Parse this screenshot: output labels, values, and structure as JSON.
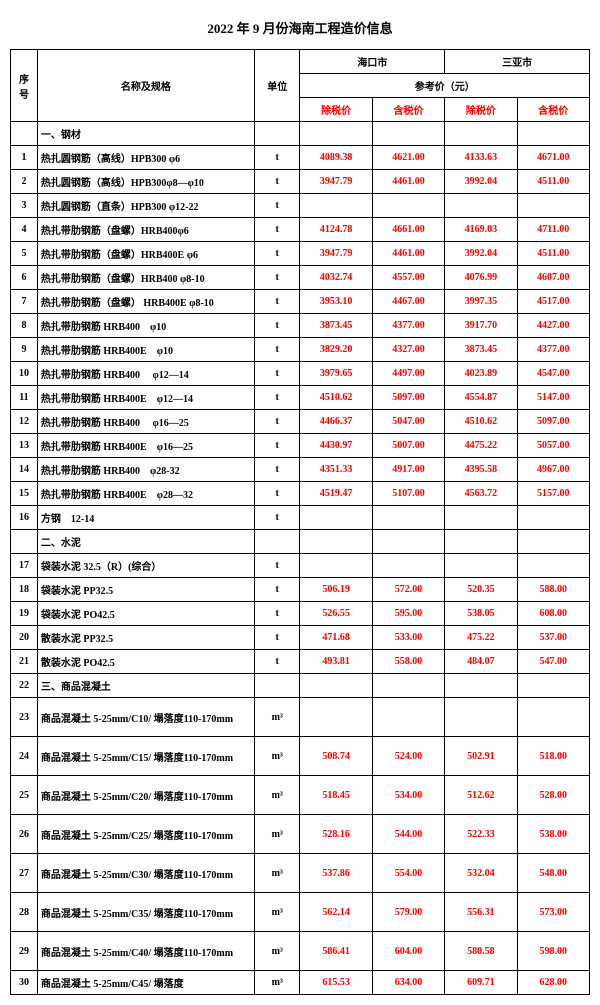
{
  "title": "2022 年 9 月份海南工程造价信息",
  "colors": {
    "price": "#ff0000",
    "text": "#000000",
    "border": "#000000",
    "bg": "#ffffff"
  },
  "header": {
    "idx": "序号",
    "name": "名称及规格",
    "unit": "单位",
    "city1": "海口市",
    "city2": "三亚市",
    "refprice": "参考价（元）",
    "excl": "除税价",
    "incl": "含税价"
  },
  "rows": [
    {
      "type": "section",
      "label": "一、钢材"
    },
    {
      "idx": "1",
      "name": "热扎圆钢筋（高线）HPB300 φ6",
      "unit": "t",
      "p": [
        "4089.38",
        "4621.00",
        "4133.63",
        "4671.00"
      ]
    },
    {
      "idx": "2",
      "name": "热扎圆钢筋（高线）HPB300φ8—φ10",
      "unit": "t",
      "p": [
        "3947.79",
        "4461.00",
        "3992.04",
        "4511.00"
      ]
    },
    {
      "idx": "3",
      "name": "热扎圆钢筋（直条）HPB300 φ12-22",
      "unit": "t",
      "p": [
        "",
        "",
        "",
        ""
      ]
    },
    {
      "idx": "4",
      "name": "热扎带肋钢筋（盘螺）HRB400φ6",
      "unit": "t",
      "p": [
        "4124.78",
        "4661.00",
        "4169.03",
        "4711.00"
      ]
    },
    {
      "idx": "5",
      "name": "热扎带肋钢筋（盘螺）HRB400E φ6",
      "unit": "t",
      "p": [
        "3947.79",
        "4461.00",
        "3992.04",
        "4511.00"
      ]
    },
    {
      "idx": "6",
      "name": "热扎带肋钢筋（盘螺）HRB400 φ8-10",
      "unit": "t",
      "p": [
        "4032.74",
        "4557.00",
        "4076.99",
        "4607.00"
      ]
    },
    {
      "idx": "7",
      "name": "热扎带肋钢筋（盘螺） HRB400E φ8-10",
      "unit": "t",
      "p": [
        "3953.10",
        "4467.00",
        "3997.35",
        "4517.00"
      ]
    },
    {
      "idx": "8",
      "name": "热扎带肋钢筋 HRB400　φ10",
      "unit": "t",
      "p": [
        "3873.45",
        "4377.00",
        "3917.70",
        "4427.00"
      ]
    },
    {
      "idx": "9",
      "name": "热扎带肋钢筋 HRB400E　φ10",
      "unit": "t",
      "p": [
        "3829.20",
        "4327.00",
        "3873.45",
        "4377.00"
      ]
    },
    {
      "idx": "10",
      "name": "热扎带肋钢筋 HRB400　 φ12—14",
      "unit": "t",
      "p": [
        "3979.65",
        "4497.00",
        "4023.89",
        "4547.00"
      ]
    },
    {
      "idx": "11",
      "name": "热扎带肋钢筋 HRB400E　φ12—14",
      "unit": "t",
      "p": [
        "4510.62",
        "5097.00",
        "4554.87",
        "5147.00"
      ]
    },
    {
      "idx": "12",
      "name": "热扎带肋钢筋 HRB400　 φ16—25",
      "unit": "t",
      "p": [
        "4466.37",
        "5047.00",
        "4510.62",
        "5097.00"
      ]
    },
    {
      "idx": "13",
      "name": "热扎带肋钢筋 HRB400E　φ16—25",
      "unit": "t",
      "p": [
        "4430.97",
        "5007.00",
        "4475.22",
        "5057.00"
      ]
    },
    {
      "idx": "14",
      "name": "热扎带肋钢筋 HRB400　φ28-32",
      "unit": "t",
      "p": [
        "4351.33",
        "4917.00",
        "4395.58",
        "4967.00"
      ]
    },
    {
      "idx": "15",
      "name": "热扎带肋钢筋 HRB400E　φ28—32",
      "unit": "t",
      "p": [
        "4519.47",
        "5107.00",
        "4563.72",
        "5157.00"
      ]
    },
    {
      "idx": "16",
      "name": "方钢　12-14",
      "unit": "t",
      "p": [
        "",
        "",
        "",
        ""
      ]
    },
    {
      "type": "section",
      "label": "二、水泥"
    },
    {
      "idx": "17",
      "name": "袋装水泥 32.5（R）(综合）",
      "unit": "t",
      "p": [
        "",
        "",
        "",
        ""
      ]
    },
    {
      "idx": "18",
      "name": "袋装水泥 PP32.5",
      "unit": "t",
      "p": [
        "506.19",
        "572.00",
        "520.35",
        "588.00"
      ]
    },
    {
      "idx": "19",
      "name": "袋装水泥 PO42.5",
      "unit": "t",
      "p": [
        "526.55",
        "595.00",
        "538.05",
        "608.00"
      ]
    },
    {
      "idx": "20",
      "name": "散装水泥 PP32.5",
      "unit": "t",
      "p": [
        "471.68",
        "533.00",
        "475.22",
        "537.00"
      ]
    },
    {
      "idx": "21",
      "name": "散装水泥 PO42.5",
      "unit": "t",
      "p": [
        "493.81",
        "558.00",
        "484.07",
        "547.00"
      ]
    },
    {
      "idx": "22",
      "type": "section-numbered",
      "label": "三、商品混凝土"
    },
    {
      "idx": "23",
      "tall": true,
      "name": "商品混凝土 5-25mm/C10/ 塌落度110-170mm",
      "unit": "m³",
      "p": [
        "",
        "",
        "",
        ""
      ]
    },
    {
      "idx": "24",
      "tall": true,
      "name": "商品混凝土 5-25mm/C15/ 塌落度110-170mm",
      "unit": "m³",
      "p": [
        "508.74",
        "524.00",
        "502.91",
        "518.00"
      ]
    },
    {
      "idx": "25",
      "tall": true,
      "name": "商品混凝土 5-25mm/C20/ 塌落度110-170mm",
      "unit": "m³",
      "p": [
        "518.45",
        "534.00",
        "512.62",
        "528.00"
      ]
    },
    {
      "idx": "26",
      "tall": true,
      "name": "商品混凝土 5-25mm/C25/ 塌落度110-170mm",
      "unit": "m³",
      "p": [
        "528.16",
        "544.00",
        "522.33",
        "538.00"
      ]
    },
    {
      "idx": "27",
      "tall": true,
      "name": "商品混凝土 5-25mm/C30/ 塌落度110-170mm",
      "unit": "m³",
      "p": [
        "537.86",
        "554.00",
        "532.04",
        "548.00"
      ]
    },
    {
      "idx": "28",
      "tall": true,
      "name": "商品混凝土 5-25mm/C35/ 塌落度110-170mm",
      "unit": "m³",
      "p": [
        "562.14",
        "579.00",
        "556.31",
        "573.00"
      ]
    },
    {
      "idx": "29",
      "tall": true,
      "name": "商品混凝土 5-25mm/C40/ 塌落度110-170mm",
      "unit": "m³",
      "p": [
        "586.41",
        "604.00",
        "580.58",
        "598.00"
      ]
    },
    {
      "idx": "30",
      "name": "商品混凝土 5-25mm/C45/ 塌落度",
      "unit": "m³",
      "p": [
        "615.53",
        "634.00",
        "609.71",
        "628.00"
      ]
    }
  ]
}
